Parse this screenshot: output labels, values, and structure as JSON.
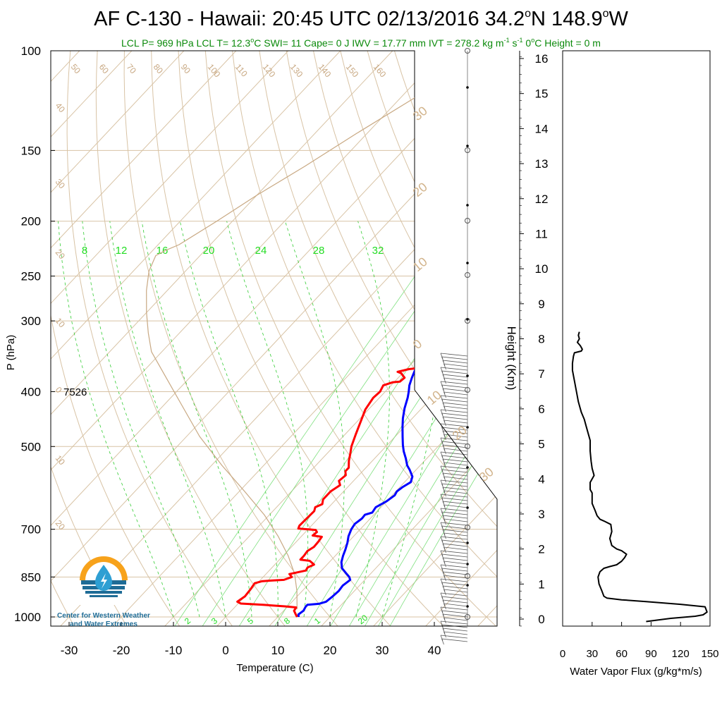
{
  "header": {
    "title": "AF C-130 - Hawaii: 20:45 UTC 02/13/2016  34.2",
    "title_lat_unit": "N 148.9",
    "title_lon_unit": "W",
    "degree_mark": "o",
    "indices": {
      "lcl_p": "LCL P= 969 hPa",
      "lcl_t_prefix": "LCL T= 12.3",
      "lcl_t_suffix": "C",
      "swi": "SWI= 11",
      "cape": "Cape= 0 J",
      "iwv": "IWV = 17.77 mm",
      "ivt_prefix": "IVT = 278.2 kg m",
      "ivt_mid": " s",
      "ivt_exp": "-1",
      "zero_c_prefix": "0",
      "zero_c_suffix": "C Height = 0 m"
    }
  },
  "logo": {
    "line1": "Center for Western Weather",
    "line2": "and Water Extremes",
    "colors": {
      "sun": "#f7a21b",
      "water": "#1f6c96",
      "drop": "#2e9fd3"
    }
  },
  "annotation": "7526",
  "colors": {
    "temperature": "#ff0000",
    "dewpoint": "#0000ff",
    "isotherms": "#d2b48c",
    "mixing_ratio": "#00ee00",
    "parcel": "#c8a882",
    "flux": "#000000"
  },
  "chart_data": [
    {
      "type": "line",
      "title": "Skew-T log-P sounding",
      "xlabel": "Temperature (C)",
      "ylabel": "P (hPa)",
      "x_ticks": [
        -30,
        -20,
        -10,
        0,
        10,
        20,
        30,
        40
      ],
      "y_ticks": [
        100,
        150,
        200,
        250,
        300,
        400,
        500,
        700,
        850,
        1000
      ],
      "ylim": [
        1050,
        100
      ],
      "isotherm_labels": [
        {
          "t": 50,
          "lbl": "50"
        },
        {
          "t": 60,
          "lbl": "60"
        },
        {
          "t": 70,
          "lbl": "70"
        },
        {
          "t": 80,
          "lbl": "80"
        },
        {
          "t": 90,
          "lbl": "90"
        },
        {
          "t": 100,
          "lbl": "100"
        },
        {
          "t": 110,
          "lbl": "110"
        },
        {
          "t": 120,
          "lbl": "120"
        },
        {
          "t": 130,
          "lbl": "130"
        },
        {
          "t": 140,
          "lbl": "140"
        },
        {
          "t": 150,
          "lbl": "150"
        },
        {
          "t": 160,
          "lbl": "160"
        }
      ],
      "left_isotherm_labels": [
        "40",
        "30",
        "20",
        "10",
        "0",
        "10",
        "20"
      ],
      "right_isotherm_labels": [
        "30",
        "20",
        "10",
        "0",
        "10",
        "20",
        "30"
      ],
      "mixing_ratio_top_labels": [
        "8",
        "12",
        "16",
        "20",
        "24",
        "28",
        "32"
      ],
      "mixing_ratio_bottom_labels": [
        "2",
        "3",
        "5",
        "8",
        "1",
        "20"
      ],
      "series": [
        {
          "name": "temperature",
          "points": [
            [
              13.7,
              1000
            ],
            [
              13.0,
              990
            ],
            [
              12.0,
              975
            ],
            [
              11.8,
              962
            ],
            [
              9.5,
              958
            ],
            [
              5.0,
              952
            ],
            [
              0.5,
              947
            ],
            [
              -0.5,
              940
            ],
            [
              0,
              920
            ],
            [
              -0.2,
              895
            ],
            [
              -0.5,
              872
            ],
            [
              0.5,
              865
            ],
            [
              2.5,
              862
            ],
            [
              4.5,
              860
            ],
            [
              5.5,
              850
            ],
            [
              4.5,
              840
            ],
            [
              7.0,
              828
            ],
            [
              6.8,
              818
            ],
            [
              7.5,
              808
            ],
            [
              6.0,
              796
            ],
            [
              4.0,
              792
            ],
            [
              4.0,
              780
            ],
            [
              3.8,
              765
            ],
            [
              4.3,
              752
            ],
            [
              4.2,
              735
            ],
            [
              4.0,
              722
            ],
            [
              2.0,
              718
            ],
            [
              2.2,
              708
            ],
            [
              1.6,
              702
            ],
            [
              -2.0,
              698
            ],
            [
              -2.3,
              690
            ],
            [
              -2.2,
              668
            ],
            [
              -2.1,
              650
            ],
            [
              -2.6,
              640
            ],
            [
              -1.8,
              632
            ],
            [
              -2.5,
              620
            ],
            [
              -2.5,
              600
            ],
            [
              -1.8,
              585
            ],
            [
              -2.8,
              575
            ],
            [
              -2.5,
              562
            ],
            [
              -3.3,
              553
            ],
            [
              -3.3,
              545
            ],
            [
              -4.5,
              530
            ],
            [
              -5.5,
              515
            ],
            [
              -6.6,
              500
            ],
            [
              -8.0,
              475
            ],
            [
              -9.3,
              452
            ],
            [
              -10.6,
              430
            ],
            [
              -11.2,
              410
            ],
            [
              -11.0,
              400
            ],
            [
              -11.5,
              390
            ],
            [
              -10.2,
              385
            ],
            [
              -9.0,
              384
            ],
            [
              -8.8,
              378
            ],
            [
              -10.3,
              371
            ],
            [
              -11.2,
              369
            ],
            [
              -9.5,
              365
            ],
            [
              -8.5,
              364
            ],
            [
              0.5,
              362
            ],
            [
              0.7,
              363
            ],
            [
              1.5,
              359
            ],
            [
              1.0,
              354
            ],
            [
              -0.7,
              348
            ],
            [
              -0.8,
              340
            ],
            [
              -1.1,
              336
            ],
            [
              -1.6,
              334
            ]
          ]
        },
        {
          "name": "dewpoint",
          "points": [
            [
              14.0,
              1000
            ],
            [
              13.5,
              990
            ],
            [
              13.8,
              975
            ],
            [
              13.5,
              960
            ],
            [
              13.5,
              952
            ],
            [
              15.5,
              948
            ],
            [
              16.5,
              940
            ],
            [
              16.8,
              920
            ],
            [
              17.0,
              900
            ],
            [
              16.8,
              880
            ],
            [
              17.2,
              860
            ],
            [
              16.5,
              850
            ],
            [
              15.0,
              835
            ],
            [
              13.5,
              820
            ],
            [
              12.3,
              800
            ],
            [
              11.5,
              780
            ],
            [
              10.8,
              760
            ],
            [
              10.0,
              740
            ],
            [
              9.0,
              720
            ],
            [
              8.3,
              700
            ],
            [
              8.0,
              685
            ],
            [
              8.4,
              670
            ],
            [
              8.3,
              660
            ],
            [
              9.3,
              654
            ],
            [
              9.0,
              640
            ],
            [
              10.0,
              625
            ],
            [
              10.5,
              610
            ],
            [
              10.2,
              600
            ],
            [
              10.5,
              590
            ],
            [
              11.2,
              578
            ],
            [
              10.5,
              565
            ],
            [
              8.8,
              550
            ],
            [
              7.5,
              540
            ],
            [
              6.0,
              525
            ],
            [
              4.3,
              510
            ],
            [
              3.0,
              497
            ],
            [
              1.4,
              480
            ],
            [
              -0.3,
              462
            ],
            [
              -1.8,
              446
            ],
            [
              -3.3,
              428
            ],
            [
              -4.6,
              410
            ],
            [
              -5.5,
              400
            ],
            [
              -6.5,
              390
            ],
            [
              -7.4,
              378
            ],
            [
              -8.2,
              366
            ],
            [
              -8.4,
              356
            ],
            [
              -9.0,
              348
            ],
            [
              -10.0,
              340
            ],
            [
              -10.6,
              334
            ]
          ]
        },
        {
          "name": "parcel",
          "points": [
            [
              12.3,
              969
            ],
            [
              9.0,
              900
            ],
            [
              5.5,
              840
            ],
            [
              1.0,
              780
            ],
            [
              -4.5,
              720
            ],
            [
              -11.0,
              660
            ],
            [
              -19.0,
              600
            ],
            [
              -28.0,
              540
            ],
            [
              -37.5,
              480
            ],
            [
              -47.0,
              420
            ],
            [
              -56.0,
              370
            ],
            [
              -62.0,
              340
            ],
            [
              -66.0,
              315
            ],
            [
              -70.0,
              290
            ],
            [
              -74.0,
              265
            ],
            [
              -77.0,
              245
            ],
            [
              -78.5,
              230
            ],
            [
              -77.5,
              225
            ],
            [
              -76.0,
              220
            ],
            [
              -73.0,
              200
            ],
            [
              -70.0,
              180
            ],
            [
              -66.0,
              160
            ],
            [
              -62.0,
              140
            ],
            [
              -57.0,
              120
            ],
            [
              -53.0,
              105
            ]
          ]
        }
      ]
    },
    {
      "type": "line",
      "title": "",
      "xlabel": "Water Vapor Flux (g/kg*m/s)",
      "ylabel": "Height (Km)",
      "xlim": [
        0,
        150
      ],
      "ylim": [
        -0.2,
        16.5
      ],
      "x_ticks": [
        0,
        30,
        60,
        90,
        120,
        150
      ],
      "y_ticks": [
        0,
        1,
        2,
        3,
        4,
        5,
        6,
        7,
        8,
        9,
        10,
        11,
        12,
        13,
        14,
        15,
        16
      ],
      "series": [
        {
          "name": "flux",
          "points": [
            [
              85,
              -0.07
            ],
            [
              110,
              0.02
            ],
            [
              135,
              0.08
            ],
            [
              143,
              0.12
            ],
            [
              147,
              0.2
            ],
            [
              145,
              0.35
            ],
            [
              120,
              0.42
            ],
            [
              85,
              0.5
            ],
            [
              60,
              0.55
            ],
            [
              45,
              0.6
            ],
            [
              42,
              0.65
            ],
            [
              40,
              0.8
            ],
            [
              37,
              1.0
            ],
            [
              36,
              1.2
            ],
            [
              38,
              1.35
            ],
            [
              42,
              1.45
            ],
            [
              48,
              1.5
            ],
            [
              55,
              1.55
            ],
            [
              60,
              1.65
            ],
            [
              63,
              1.75
            ],
            [
              65,
              1.85
            ],
            [
              60,
              1.95
            ],
            [
              55,
              2.0
            ],
            [
              50,
              2.1
            ],
            [
              48,
              2.3
            ],
            [
              50,
              2.5
            ],
            [
              49,
              2.7
            ],
            [
              42,
              2.8
            ],
            [
              38,
              2.85
            ],
            [
              35,
              2.95
            ],
            [
              33,
              3.1
            ],
            [
              30,
              3.3
            ],
            [
              30,
              3.6
            ],
            [
              28,
              3.7
            ],
            [
              28,
              3.9
            ],
            [
              32,
              4.1
            ],
            [
              30,
              4.3
            ],
            [
              29,
              4.5
            ],
            [
              28,
              4.8
            ],
            [
              28,
              5.1
            ],
            [
              26,
              5.3
            ],
            [
              24,
              5.5
            ],
            [
              22,
              5.7
            ],
            [
              19,
              5.9
            ],
            [
              16,
              6.2
            ],
            [
              14,
              6.5
            ],
            [
              12,
              6.8
            ],
            [
              10,
              7.1
            ],
            [
              10,
              7.3
            ],
            [
              11,
              7.5
            ],
            [
              12,
              7.6
            ],
            [
              19,
              7.65
            ],
            [
              20,
              7.7
            ],
            [
              18,
              7.8
            ],
            [
              15,
              7.9
            ],
            [
              17,
              8.0
            ],
            [
              16,
              8.1
            ],
            [
              17,
              8.2
            ]
          ]
        }
      ]
    }
  ]
}
